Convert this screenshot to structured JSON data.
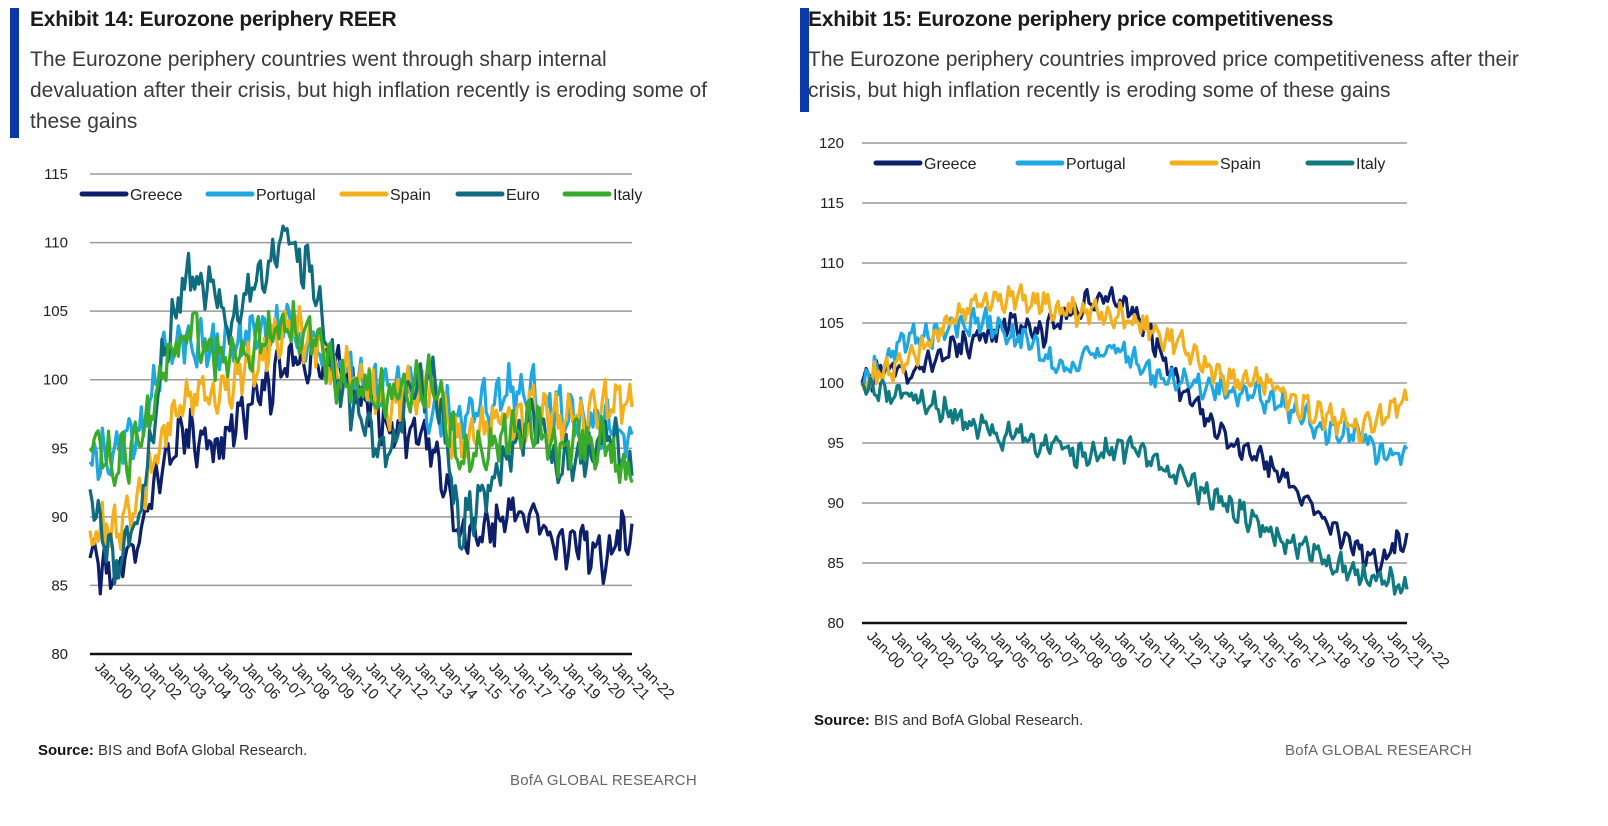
{
  "left": {
    "title": "Exhibit 14: Eurozone periphery REER",
    "subtitle": "The Eurozone periphery countries went through sharp internal devaluation after their crisis, but high inflation recently is eroding some of these gains",
    "source_label": "Source:",
    "source_text": "BIS and BofA Global Research.",
    "brand": "BofA GLOBAL RESEARCH"
  },
  "right": {
    "title": "Exhibit 15: Eurozone periphery price competitiveness",
    "subtitle": "The Eurozone periphery countries improved price competitiveness after their crisis, but high inflation recently is eroding some of these gains",
    "source_label": "Source:",
    "source_text": "BIS and BofA Global Research.",
    "brand": "BofA GLOBAL RESEARCH"
  },
  "colors": {
    "Greece": "#0d1f6b",
    "Portugal": "#1ea7e1",
    "Spain": "#f2b01e",
    "Euro": "#0f6b7e",
    "Italy_left": "#3aaa2a",
    "Italy_right": "#0f7a80"
  },
  "chart_data": [
    {
      "type": "line",
      "title": "Exhibit 14: Eurozone periphery REER",
      "ylim": [
        80,
        115
      ],
      "yticks": [
        80,
        85,
        90,
        95,
        100,
        105,
        110,
        115
      ],
      "categories": [
        "Jan-00",
        "Jan-01",
        "Jan-02",
        "Jan-03",
        "Jan-04",
        "Jan-05",
        "Jan-06",
        "Jan-07",
        "Jan-08",
        "Jan-09",
        "Jan-10",
        "Jan-11",
        "Jan-12",
        "Jan-13",
        "Jan-14",
        "Jan-15",
        "Jan-16",
        "Jan-17",
        "Jan-18",
        "Jan-19",
        "Jan-20",
        "Jan-21",
        "Jan-22"
      ],
      "legend": [
        "Greece",
        "Portugal",
        "Spain",
        "Euro",
        "Italy"
      ],
      "series": [
        {
          "name": "Greece",
          "values": [
            87,
            85,
            89,
            94,
            96,
            95,
            97,
            99,
            101,
            102,
            101,
            99,
            97,
            96,
            95,
            89,
            89,
            90,
            90,
            88,
            88,
            87,
            89.5
          ]
        },
        {
          "name": "Portugal",
          "values": [
            94,
            95,
            96,
            102,
            103,
            102,
            103,
            103,
            104,
            102,
            101,
            100,
            99,
            99,
            98,
            97,
            98,
            99,
            99,
            98,
            97,
            97,
            96
          ]
        },
        {
          "name": "Spain",
          "values": [
            89,
            89,
            91,
            96,
            99,
            99,
            100,
            102,
            104,
            103,
            101,
            100,
            98,
            99,
            99,
            95,
            96,
            97,
            98,
            97,
            97,
            98,
            98
          ]
        },
        {
          "name": "Euro",
          "values": [
            92,
            86,
            90,
            102,
            108,
            106,
            104,
            108,
            110,
            108,
            100,
            97,
            94,
            99,
            100,
            89,
            92,
            95,
            97,
            94,
            94,
            96,
            93
          ]
        },
        {
          "name": "Italy",
          "values": [
            95,
            94,
            95,
            101,
            104,
            102,
            102,
            103,
            104,
            104,
            100,
            99,
            99,
            99,
            100,
            94,
            95,
            96,
            97,
            95,
            96,
            95,
            92.5
          ]
        }
      ]
    },
    {
      "type": "line",
      "title": "Exhibit 15: Eurozone periphery price competitiveness",
      "ylim": [
        80,
        120
      ],
      "yticks": [
        80,
        85,
        90,
        95,
        100,
        105,
        110,
        115,
        120
      ],
      "categories": [
        "Jan-00",
        "Jan-01",
        "Jan-02",
        "Jan-03",
        "Jan-04",
        "Jan-05",
        "Jan-06",
        "Jan-07",
        "Jan-08",
        "Jan-09",
        "Jan-10",
        "Jan-11",
        "Jan-12",
        "Jan-13",
        "Jan-14",
        "Jan-15",
        "Jan-16",
        "Jan-17",
        "Jan-18",
        "Jan-19",
        "Jan-20",
        "Jan-21",
        "Jan-22"
      ],
      "legend": [
        "Greece",
        "Portugal",
        "Spain",
        "Italy"
      ],
      "series": [
        {
          "name": "Greece",
          "values": [
            100,
            101,
            101,
            102,
            103,
            104,
            105,
            104,
            105,
            107,
            107,
            106,
            103,
            99,
            97,
            95,
            94,
            92,
            90,
            88,
            86,
            85,
            87.5
          ]
        },
        {
          "name": "Portugal",
          "values": [
            100,
            102,
            104,
            104,
            105,
            105,
            104,
            103,
            101,
            102,
            103,
            102,
            100,
            100,
            100,
            99,
            99,
            98,
            97,
            96,
            96,
            94,
            94.5
          ]
        },
        {
          "name": "Spain",
          "values": [
            100,
            101,
            102,
            104,
            106,
            107,
            107,
            107,
            106,
            106,
            106,
            105,
            104,
            103,
            101,
            100,
            100,
            99,
            98,
            97,
            96,
            97,
            98.5
          ]
        },
        {
          "name": "Italy",
          "values": [
            100,
            99,
            99,
            98,
            97,
            96,
            95.5,
            95,
            94.5,
            94,
            94.5,
            94.5,
            93,
            92,
            90.5,
            89.5,
            88.5,
            87,
            86,
            85,
            84,
            83.5,
            82.8
          ]
        }
      ]
    }
  ]
}
